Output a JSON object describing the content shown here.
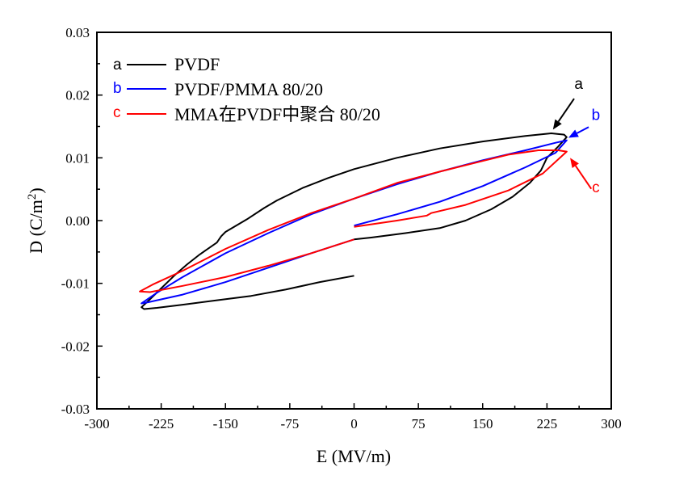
{
  "chart_data": {
    "type": "line",
    "title": "",
    "xlabel": "E (MV/m)",
    "ylabel": "D (C/m²)",
    "ylabel_base": "D (C/m",
    "ylabel_sup": "2",
    "ylabel_close": ")",
    "xlim": [
      -300,
      300
    ],
    "ylim": [
      -0.03,
      0.03
    ],
    "xticks": [
      -300,
      -225,
      -150,
      -75,
      0,
      75,
      150,
      225,
      300
    ],
    "xtick_labels": [
      "-300",
      "-225",
      "-150",
      "-75",
      "0",
      "75",
      "150",
      "225",
      "300"
    ],
    "yticks": [
      -0.03,
      -0.02,
      -0.01,
      0.0,
      0.01,
      0.02,
      0.03
    ],
    "ytick_labels": [
      "-0.03",
      "-0.02",
      "-0.01",
      "0.00",
      "0.01",
      "0.02",
      "0.03"
    ],
    "grid": false,
    "legend_position": "top-left",
    "series": [
      {
        "name": "PVDF",
        "letter": "a",
        "color": "#000000",
        "points": [
          [
            0,
            -0.0088
          ],
          [
            -40,
            -0.0098
          ],
          [
            -80,
            -0.011
          ],
          [
            -120,
            -0.012
          ],
          [
            -160,
            -0.0127
          ],
          [
            -200,
            -0.0134
          ],
          [
            -230,
            -0.0139
          ],
          [
            -245,
            -0.0141
          ],
          [
            -248,
            -0.0138
          ],
          [
            -240,
            -0.0128
          ],
          [
            -225,
            -0.0108
          ],
          [
            -210,
            -0.0088
          ],
          [
            -195,
            -0.007
          ],
          [
            -180,
            -0.0054
          ],
          [
            -160,
            -0.0035
          ],
          [
            -155,
            -0.0025
          ],
          [
            -150,
            -0.0018
          ],
          [
            -140,
            -0.001
          ],
          [
            -125,
            0.0002
          ],
          [
            -105,
            0.002
          ],
          [
            -90,
            0.0032
          ],
          [
            -60,
            0.0052
          ],
          [
            -30,
            0.0068
          ],
          [
            0,
            0.0082
          ],
          [
            50,
            0.01
          ],
          [
            100,
            0.0115
          ],
          [
            150,
            0.0126
          ],
          [
            200,
            0.0135
          ],
          [
            230,
            0.0139
          ],
          [
            245,
            0.0137
          ],
          [
            248,
            0.0133
          ],
          [
            238,
            0.0118
          ],
          [
            225,
            0.01
          ],
          [
            218,
            0.008
          ],
          [
            205,
            0.006
          ],
          [
            185,
            0.0038
          ],
          [
            160,
            0.0018
          ],
          [
            130,
            0.0
          ],
          [
            100,
            -0.0012
          ],
          [
            60,
            -0.002
          ],
          [
            20,
            -0.0027
          ],
          [
            0,
            -0.003
          ]
        ]
      },
      {
        "name": "PVDF/PMMA 80/20",
        "letter": "b",
        "color": "#0000ff",
        "points": [
          [
            0,
            -0.0008
          ],
          [
            50,
            0.001
          ],
          [
            100,
            0.003
          ],
          [
            150,
            0.0055
          ],
          [
            200,
            0.0085
          ],
          [
            235,
            0.0108
          ],
          [
            248,
            0.0128
          ],
          [
            235,
            0.0124
          ],
          [
            200,
            0.0112
          ],
          [
            150,
            0.0096
          ],
          [
            100,
            0.0078
          ],
          [
            50,
            0.0058
          ],
          [
            0,
            0.0035
          ],
          [
            -50,
            0.001
          ],
          [
            -100,
            -0.002
          ],
          [
            -150,
            -0.0052
          ],
          [
            -200,
            -0.009
          ],
          [
            -230,
            -0.0115
          ],
          [
            -248,
            -0.0132
          ],
          [
            -240,
            -0.013
          ],
          [
            -200,
            -0.0118
          ],
          [
            -150,
            -0.0098
          ],
          [
            -100,
            -0.0075
          ],
          [
            -50,
            -0.0052
          ],
          [
            0,
            -0.003
          ]
        ]
      },
      {
        "name": "MMA在PVDF中聚合 80/20",
        "letter": "c",
        "color": "#ff0000",
        "points": [
          [
            0,
            -0.001
          ],
          [
            50,
            -0.0
          ],
          [
            85,
            0.0008
          ],
          [
            90,
            0.0012
          ],
          [
            130,
            0.0025
          ],
          [
            180,
            0.0048
          ],
          [
            220,
            0.0075
          ],
          [
            248,
            0.011
          ],
          [
            238,
            0.0112
          ],
          [
            215,
            0.0112
          ],
          [
            180,
            0.0105
          ],
          [
            150,
            0.0095
          ],
          [
            100,
            0.0078
          ],
          [
            50,
            0.006
          ],
          [
            0,
            0.0035
          ],
          [
            -50,
            0.0012
          ],
          [
            -100,
            -0.0015
          ],
          [
            -150,
            -0.0045
          ],
          [
            -200,
            -0.008
          ],
          [
            -235,
            -0.0102
          ],
          [
            -250,
            -0.0113
          ],
          [
            -238,
            -0.0114
          ],
          [
            -200,
            -0.0104
          ],
          [
            -150,
            -0.009
          ],
          [
            -100,
            -0.0072
          ],
          [
            -50,
            -0.0052
          ],
          [
            0,
            -0.003
          ]
        ]
      }
    ],
    "annotations": [
      {
        "label": "a",
        "color": "#000000",
        "tip": [
          232,
          0.0145
        ],
        "text_at": [
          262,
          0.0205
        ]
      },
      {
        "label": "b",
        "color": "#0000ff",
        "tip": [
          250,
          0.0132
        ],
        "text_at": [
          282,
          0.0155
        ]
      },
      {
        "label": "c",
        "color": "#ff0000",
        "tip": [
          252,
          0.01
        ],
        "text_at": [
          282,
          0.004
        ]
      }
    ]
  }
}
